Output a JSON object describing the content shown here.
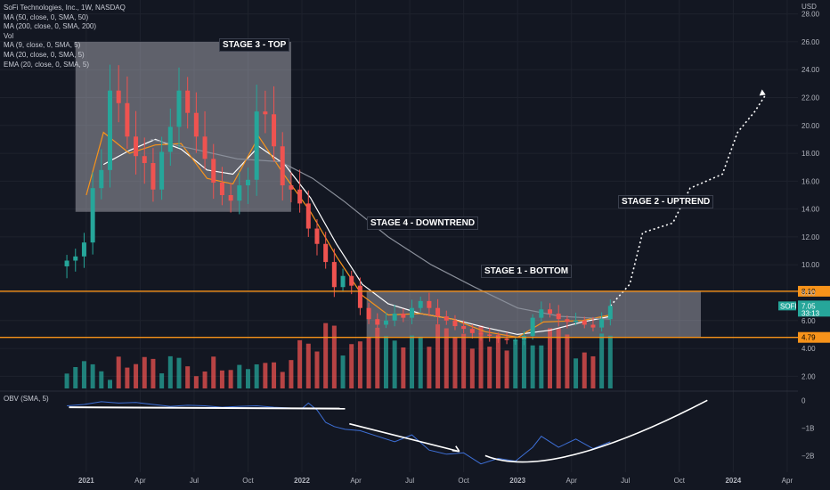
{
  "header": {
    "title": "SoFi Technologies, Inc., 1W, NASDAQ",
    "indicators": [
      "MA (50, close, 0, SMA, 50)",
      "MA (200, close, 0, SMA, 200)",
      "Vol",
      "MA (9, close, 0, SMA, 5)",
      "MA (20, close, 0, SMA, 5)",
      "EMA (20, close, 0, SMA, 5)"
    ],
    "obv_label": "OBV (SMA, 5)"
  },
  "annotations": {
    "stage3": "STAGE 3 - TOP",
    "stage4": "STAGE 4 - DOWNTREND",
    "stage1": "STAGE 1 - BOTTOM",
    "stage2": "STAGE 2 - UPTREND"
  },
  "chart_data": {
    "type": "candlestick",
    "currency": "USD",
    "x_ticks": [
      "2021",
      "Apr",
      "Jul",
      "Oct",
      "2022",
      "Apr",
      "Jul",
      "Oct",
      "2023",
      "Apr",
      "Jul",
      "Oct",
      "2024",
      "Apr"
    ],
    "x_tick_dates": [
      2021.0,
      2021.25,
      2021.5,
      2021.75,
      2022.0,
      2022.25,
      2022.5,
      2022.75,
      2023.0,
      2023.25,
      2023.5,
      2023.75,
      2024.0,
      2024.25
    ],
    "xlim": [
      2020.6,
      2024.3
    ],
    "y_ticks": [
      2,
      4,
      6,
      8,
      10,
      12,
      14,
      16,
      18,
      20,
      22,
      24,
      26,
      28
    ],
    "ylim": [
      1,
      29
    ],
    "obv_ticks": [
      "0",
      "−1B",
      "−2B"
    ],
    "obv_tick_values": [
      0,
      -1,
      -2
    ],
    "obv_ylim": [
      -2.6,
      0.3
    ],
    "resistance": {
      "value": 8.1,
      "label": "8.10",
      "color": "#f7931a"
    },
    "support": {
      "value": 4.79,
      "label": "4.79",
      "color": "#f7931a"
    },
    "last_price": {
      "value": 7.05,
      "ticker": "SOFI",
      "label": "7.05",
      "sub_label": "33:13"
    },
    "top_box": {
      "x": [
        2020.95,
        2021.95
      ],
      "y": [
        13.8,
        26.0
      ]
    },
    "bottom_box": {
      "x": [
        2022.3,
        2023.85
      ],
      "y": [
        4.79,
        8.1
      ]
    },
    "series": [
      {
        "name": "price_weekly",
        "color_up": "#26a69a",
        "color_down": "#ef5350",
        "points": [
          [
            2020.91,
            10.3
          ],
          [
            2020.95,
            10.6
          ],
          [
            2020.99,
            11.6
          ],
          [
            2021.03,
            15.5
          ],
          [
            2021.07,
            16.8
          ],
          [
            2021.11,
            22.5
          ],
          [
            2021.15,
            21.6
          ],
          [
            2021.19,
            19.2
          ],
          [
            2021.23,
            17.8
          ],
          [
            2021.27,
            17.3
          ],
          [
            2021.31,
            15.4
          ],
          [
            2021.35,
            18.1
          ],
          [
            2021.39,
            19.9
          ],
          [
            2021.43,
            22.5
          ],
          [
            2021.47,
            20.9
          ],
          [
            2021.51,
            19.2
          ],
          [
            2021.55,
            17.6
          ],
          [
            2021.59,
            15.9
          ],
          [
            2021.63,
            15.0
          ],
          [
            2021.67,
            14.6
          ],
          [
            2021.71,
            15.7
          ],
          [
            2021.75,
            16.1
          ],
          [
            2021.79,
            21.0
          ],
          [
            2021.83,
            20.8
          ],
          [
            2021.87,
            18.5
          ],
          [
            2021.91,
            15.7
          ],
          [
            2021.95,
            15.4
          ],
          [
            2021.99,
            14.4
          ],
          [
            2022.03,
            12.6
          ],
          [
            2022.07,
            11.5
          ],
          [
            2022.11,
            10.2
          ],
          [
            2022.15,
            8.4
          ],
          [
            2022.19,
            9.2
          ],
          [
            2022.23,
            8.5
          ],
          [
            2022.27,
            6.9
          ],
          [
            2022.31,
            6.1
          ],
          [
            2022.35,
            5.7
          ],
          [
            2022.39,
            6.0
          ],
          [
            2022.43,
            6.5
          ],
          [
            2022.47,
            6.2
          ],
          [
            2022.51,
            6.9
          ],
          [
            2022.55,
            7.4
          ],
          [
            2022.59,
            6.9
          ],
          [
            2022.63,
            6.3
          ],
          [
            2022.67,
            6.0
          ],
          [
            2022.71,
            5.6
          ],
          [
            2022.75,
            5.4
          ],
          [
            2022.79,
            5.1
          ],
          [
            2022.83,
            5.0
          ],
          [
            2022.87,
            4.9
          ],
          [
            2022.91,
            4.7
          ],
          [
            2022.95,
            4.6
          ],
          [
            2022.99,
            4.6
          ],
          [
            2023.03,
            4.9
          ],
          [
            2023.07,
            6.2
          ],
          [
            2023.11,
            6.8
          ],
          [
            2023.15,
            6.5
          ],
          [
            2023.19,
            6.1
          ],
          [
            2023.23,
            5.9
          ],
          [
            2023.27,
            6.0
          ],
          [
            2023.31,
            5.7
          ],
          [
            2023.35,
            5.5
          ],
          [
            2023.39,
            6.1
          ],
          [
            2023.43,
            7.05
          ]
        ]
      },
      {
        "name": "ma_white",
        "color": "#ffffff",
        "points": [
          [
            2021.08,
            17.2
          ],
          [
            2021.2,
            18.2
          ],
          [
            2021.32,
            19.0
          ],
          [
            2021.44,
            18.3
          ],
          [
            2021.56,
            16.8
          ],
          [
            2021.68,
            16.5
          ],
          [
            2021.8,
            18.5
          ],
          [
            2021.92,
            17.2
          ],
          [
            2022.04,
            14.8
          ],
          [
            2022.16,
            11.5
          ],
          [
            2022.28,
            8.6
          ],
          [
            2022.4,
            7.2
          ],
          [
            2022.55,
            6.5
          ],
          [
            2022.7,
            6.1
          ],
          [
            2022.85,
            5.5
          ],
          [
            2023.0,
            5.0
          ],
          [
            2023.15,
            5.3
          ],
          [
            2023.3,
            5.9
          ],
          [
            2023.43,
            6.3
          ]
        ]
      },
      {
        "name": "ma_orange",
        "color": "#f7931a",
        "points": [
          [
            2021.0,
            15.0
          ],
          [
            2021.08,
            19.5
          ],
          [
            2021.2,
            18.0
          ],
          [
            2021.32,
            18.6
          ],
          [
            2021.44,
            18.7
          ],
          [
            2021.56,
            16.2
          ],
          [
            2021.68,
            15.8
          ],
          [
            2021.8,
            19.2
          ],
          [
            2021.92,
            16.4
          ],
          [
            2022.04,
            13.8
          ],
          [
            2022.16,
            10.6
          ],
          [
            2022.28,
            7.8
          ],
          [
            2022.4,
            6.4
          ],
          [
            2022.55,
            6.5
          ],
          [
            2022.7,
            6.1
          ],
          [
            2022.85,
            5.2
          ],
          [
            2023.0,
            4.8
          ],
          [
            2023.12,
            5.9
          ],
          [
            2023.3,
            6.0
          ],
          [
            2023.43,
            6.4
          ]
        ]
      },
      {
        "name": "ma_grey",
        "color": "#8a8f9a",
        "points": [
          [
            2021.3,
            19.0
          ],
          [
            2021.5,
            18.3
          ],
          [
            2021.7,
            17.6
          ],
          [
            2021.9,
            17.4
          ],
          [
            2022.05,
            16.2
          ],
          [
            2022.2,
            14.5
          ],
          [
            2022.4,
            12.0
          ],
          [
            2022.6,
            10.0
          ],
          [
            2022.8,
            8.4
          ],
          [
            2023.0,
            6.9
          ],
          [
            2023.2,
            6.3
          ],
          [
            2023.43,
            6.1
          ]
        ]
      },
      {
        "name": "projection",
        "color": "#ffffff",
        "dashed": true,
        "points": [
          [
            2023.43,
            7.05
          ],
          [
            2023.52,
            8.6
          ],
          [
            2023.58,
            12.3
          ],
          [
            2023.72,
            13.0
          ],
          [
            2023.8,
            15.5
          ],
          [
            2023.95,
            16.5
          ],
          [
            2024.02,
            19.5
          ],
          [
            2024.1,
            21.0
          ],
          [
            2024.15,
            22.2
          ]
        ]
      },
      {
        "name": "obv",
        "color": "#3d6fd6",
        "points": [
          [
            2020.91,
            -0.2
          ],
          [
            2020.99,
            -0.15
          ],
          [
            2021.07,
            -0.05
          ],
          [
            2021.15,
            -0.1
          ],
          [
            2021.23,
            -0.08
          ],
          [
            2021.31,
            -0.15
          ],
          [
            2021.39,
            -0.22
          ],
          [
            2021.47,
            -0.18
          ],
          [
            2021.55,
            -0.2
          ],
          [
            2021.63,
            -0.25
          ],
          [
            2021.71,
            -0.22
          ],
          [
            2021.79,
            -0.2
          ],
          [
            2021.87,
            -0.25
          ],
          [
            2021.95,
            -0.28
          ],
          [
            2022.0,
            -0.3
          ],
          [
            2022.03,
            -0.1
          ],
          [
            2022.07,
            -0.35
          ],
          [
            2022.11,
            -0.8
          ],
          [
            2022.15,
            -0.95
          ],
          [
            2022.2,
            -1.05
          ],
          [
            2022.27,
            -1.1
          ],
          [
            2022.35,
            -1.3
          ],
          [
            2022.43,
            -1.5
          ],
          [
            2022.51,
            -1.25
          ],
          [
            2022.59,
            -1.8
          ],
          [
            2022.67,
            -1.95
          ],
          [
            2022.75,
            -1.9
          ],
          [
            2022.83,
            -2.3
          ],
          [
            2022.91,
            -2.1
          ],
          [
            2022.99,
            -2.2
          ],
          [
            2023.07,
            -1.7
          ],
          [
            2023.11,
            -1.3
          ],
          [
            2023.19,
            -1.7
          ],
          [
            2023.27,
            -1.4
          ],
          [
            2023.35,
            -1.75
          ],
          [
            2023.43,
            -1.5
          ]
        ]
      }
    ],
    "volume_scale_note": ""
  }
}
